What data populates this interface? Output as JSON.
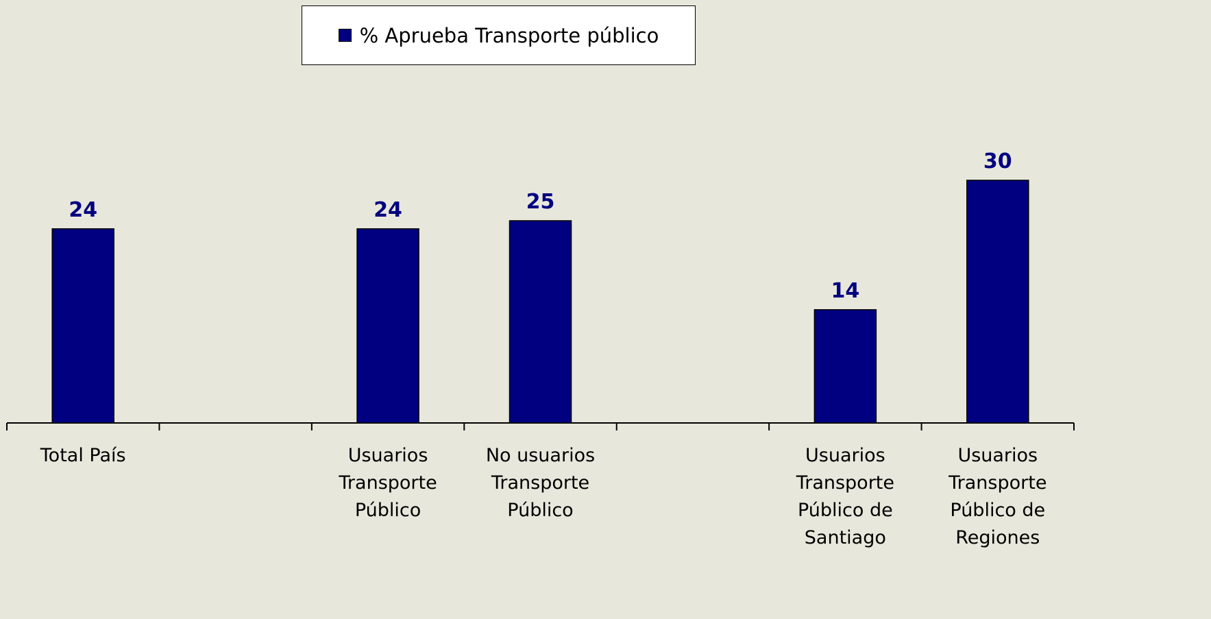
{
  "chart_data": {
    "type": "bar",
    "categories": [
      "Total País",
      null,
      "Usuarios Transporte Público",
      "No usuarios Transporte Público",
      null,
      "Usuarios Transporte Público de Santiago",
      "Usuarios Transporte Público de Regiones"
    ],
    "series": [
      {
        "name": "% Aprueba Transporte público",
        "color": "#000080",
        "values": [
          24,
          null,
          24,
          25,
          null,
          14,
          30
        ]
      }
    ],
    "legend": "top"
  }
}
